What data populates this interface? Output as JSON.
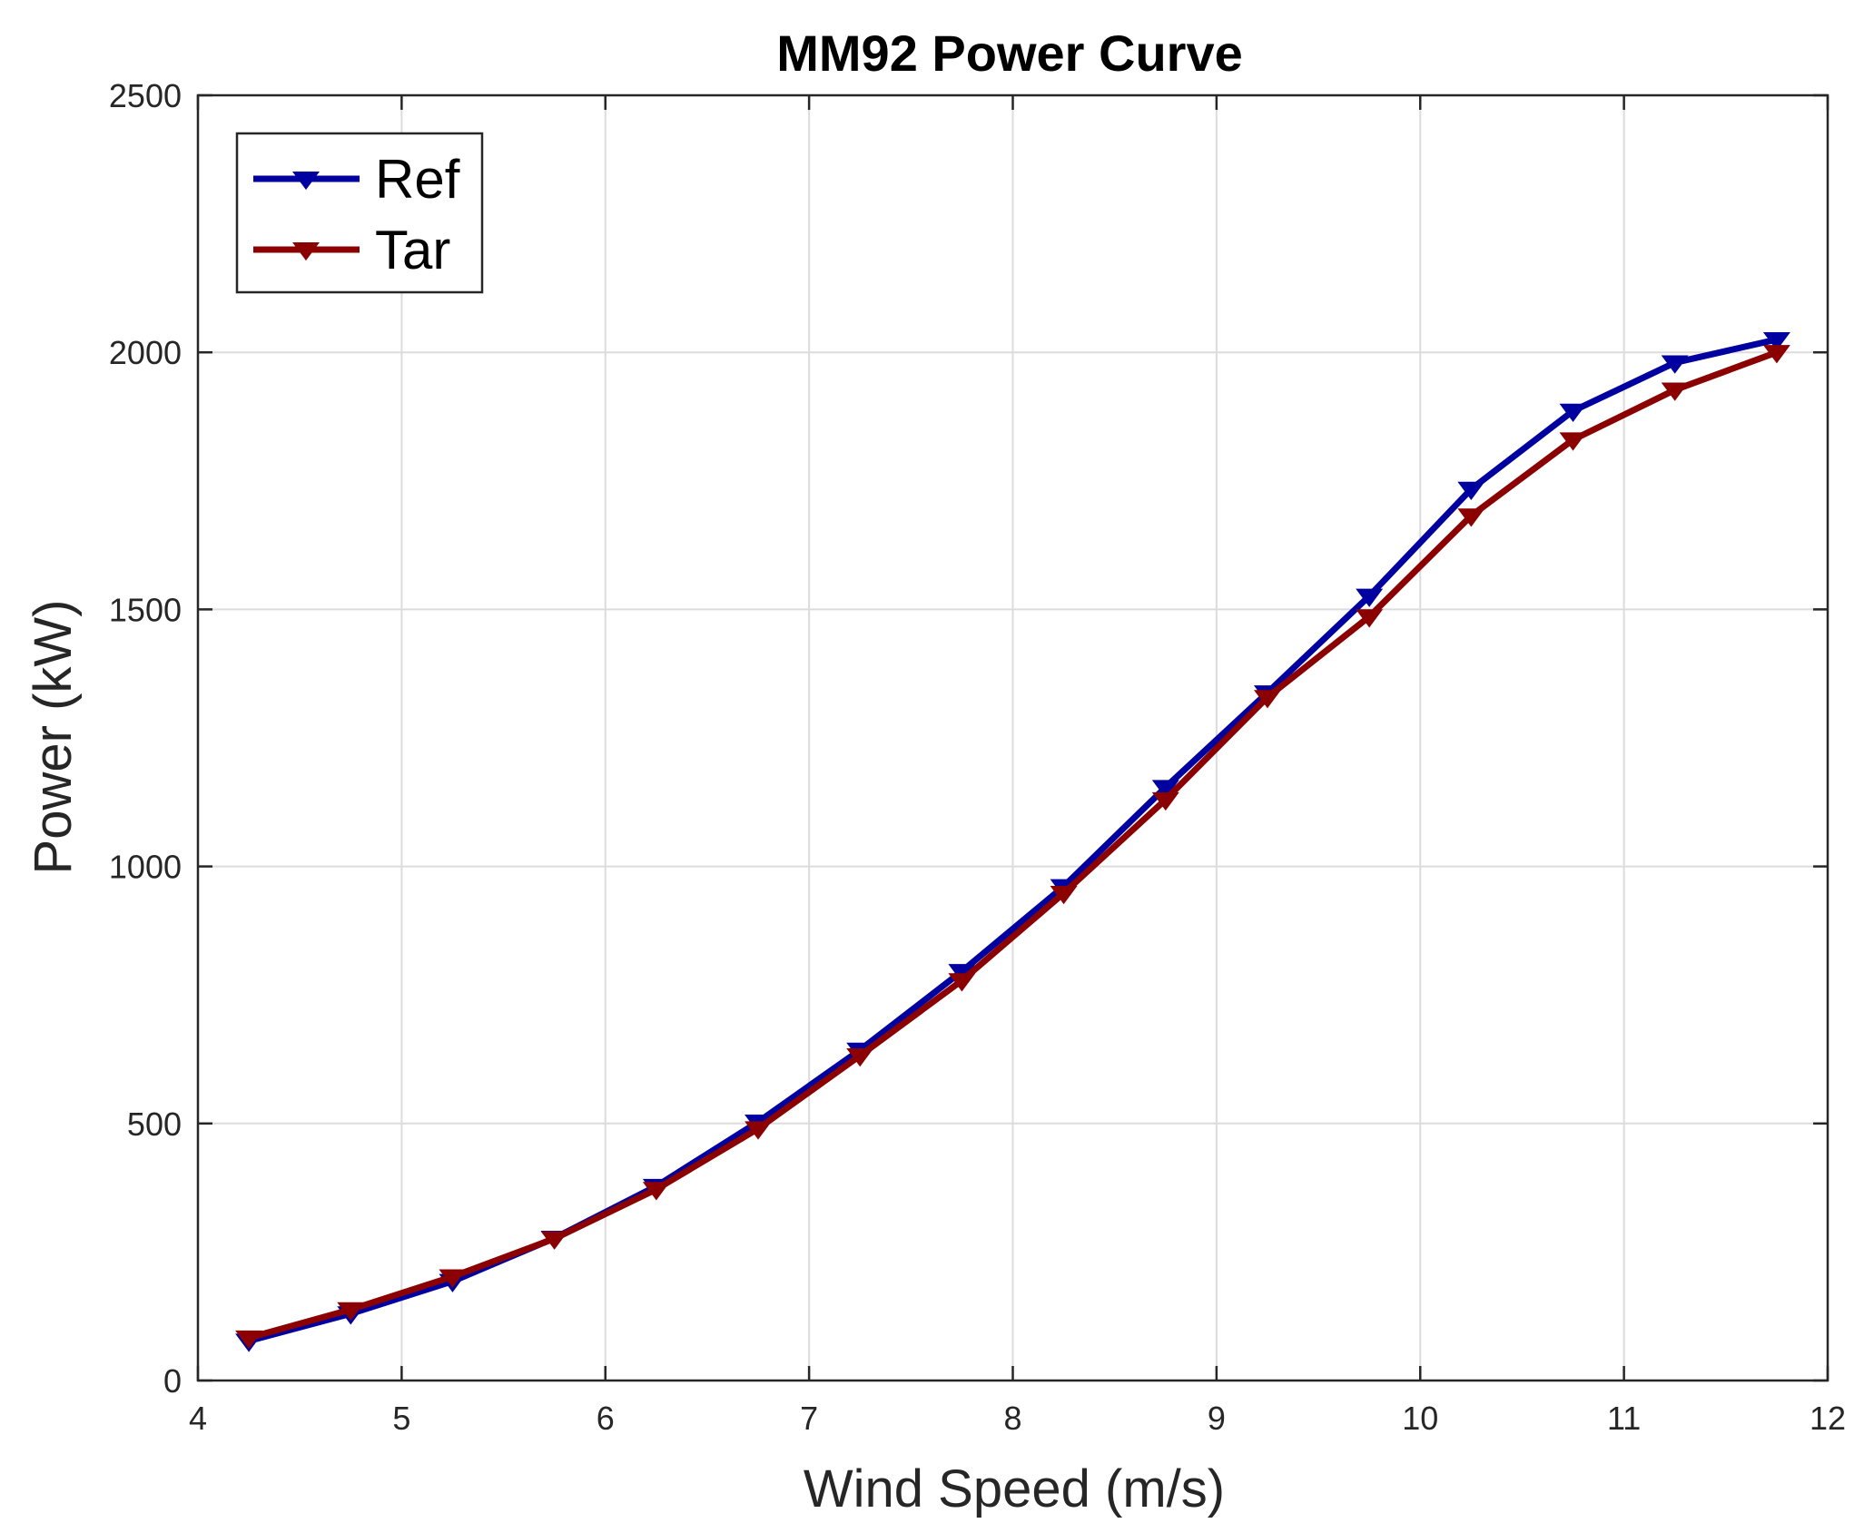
{
  "chart_data": {
    "type": "line",
    "title": "MM92 Power Curve",
    "xlabel": "Wind Speed (m/s)",
    "ylabel": "Power (kW)",
    "xlim": [
      4,
      12
    ],
    "ylim": [
      0,
      2500
    ],
    "xticks": [
      4,
      5,
      6,
      7,
      8,
      9,
      10,
      11,
      12
    ],
    "yticks": [
      0,
      500,
      1000,
      1500,
      2000,
      2500
    ],
    "grid": true,
    "legend_position": "top-left",
    "x": [
      4.25,
      4.75,
      5.25,
      5.75,
      6.25,
      6.75,
      7.25,
      7.75,
      8.25,
      8.75,
      9.25,
      9.75,
      10.25,
      10.75,
      11.25,
      11.75
    ],
    "series": [
      {
        "name": "Ref",
        "color": "#0000a0",
        "marker": "triangle-down",
        "values": [
          77,
          130,
          193,
          277,
          378,
          503,
          643,
          796,
          961,
          1154,
          1338,
          1526,
          1734,
          1886,
          1980,
          2025
        ]
      },
      {
        "name": "Tar",
        "color": "#8b0000",
        "marker": "triangle-down",
        "values": [
          83,
          138,
          202,
          276,
          372,
          490,
          632,
          778,
          948,
          1130,
          1329,
          1486,
          1682,
          1830,
          1927,
          2000
        ]
      }
    ]
  }
}
